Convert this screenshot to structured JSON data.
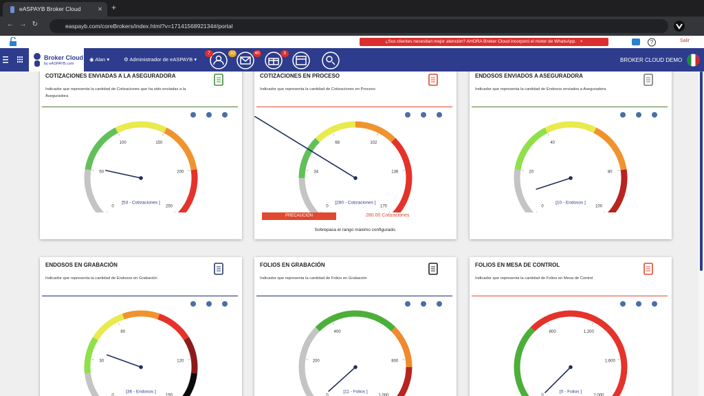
{
  "browser": {
    "tab_title": "eASPAYB Broker Cloud",
    "url": "easpayb.com/coreBrokers/index.html?v=1714156892134#/portal"
  },
  "notice": {
    "text": "¿Sus clientes necesitan mejor atención? AHORA Broker Cloud incorporó el motor de WhatsApp.",
    "close": "×"
  },
  "logout": "Salir",
  "nav": {
    "brand": "Broker Cloud",
    "brand_sub": "by eASPAYB.com",
    "user": "Alan",
    "role": "Administrador de eASPAYB",
    "badges": [
      7,
      10,
      40,
      3
    ],
    "company": "BROKER CLOUD DEMO"
  },
  "cards": [
    {
      "title": "COTIZACIONES ENVIADAS A LA ASEGURADORA",
      "description": "Indicador que representa la cantidad de Cotizaciones que ha sido enviadas a la Aseguradora",
      "accent": "#4b7a2c",
      "icon_color": "#3f8f3a",
      "range": [
        0,
        250
      ],
      "ticks": [
        0,
        50,
        100,
        150,
        200,
        250
      ],
      "value": 53,
      "value_label": "[53 - Cotizaciones ]",
      "bands": [
        "#c4c4c4",
        "#62c05a",
        "#e9ea4c",
        "#f0932f",
        "#e4332b"
      ]
    },
    {
      "title": "COTIZACIONES EN PROCESO",
      "description": "Indicador que representa la cantidad de Cotizaciones en Proceso",
      "accent": "#e0492f",
      "icon_color": "#e0492f",
      "range": [
        0,
        170
      ],
      "ticks": [
        0,
        34,
        68,
        102,
        136,
        170
      ],
      "value": 280,
      "value_label": "[280 - Cotizaciones ]",
      "bands": [
        "#c4c4c4",
        "#62c05a",
        "#e9ea4c",
        "#f0932f",
        "#e4332b",
        "#e4332b"
      ],
      "alert": {
        "button": "PRECAUCIÓN",
        "amount": "280.00 Cotizaciones",
        "message": "Sobrepasa el rango máximo configurado."
      }
    },
    {
      "title": "ENDOSOS ENVIADOS A ASEGURADORA",
      "description": "Indicador que representa la cantidad de Endosos enviados a Aseguradora",
      "accent": "#4b7a2c",
      "icon_color": "#777777",
      "range": [
        0,
        100
      ],
      "ticks": [
        0,
        20,
        40,
        80,
        100
      ],
      "value": 10,
      "value_label": "[10 - Endosos ]",
      "bands": [
        "#c4c4c4",
        "#8fe04a",
        "#e9ea4c",
        "#f0932f",
        "#b8241f"
      ]
    },
    {
      "title": "ENDOSOS EN GRABACIÓN",
      "description": "Indicador que representa la cantidad de Endosos en Grabación",
      "accent": "#1f2d6b",
      "icon_color": "#2b3a6b",
      "range": [
        0,
        150
      ],
      "ticks": [
        0,
        30,
        60,
        120,
        150
      ],
      "value": 36,
      "value_label": "[36 - Endosos ]",
      "bands": [
        "#c4c4c4",
        "#8fe04a",
        "#e9ea4c",
        "#f0932f",
        "#e4332b",
        "#8e1b1b",
        "#0a0a0a"
      ]
    },
    {
      "title": "FOLIOS EN GRABACIÓN",
      "description": "Indicador que representa la cantidad de Folios en Grabación",
      "accent": "#1f2d6b",
      "icon_color": "#222222",
      "range": [
        0,
        1000
      ],
      "ticks": [
        0,
        200,
        400,
        {
          "value": 1000,
          "label": "1,000"
        },
        800
      ],
      "value": 11,
      "value_label": "[11 - Folios ]",
      "bands": [
        "#c4c4c4",
        "#c4c4c4",
        "#4caf3a",
        "#4caf3a",
        "#ef8a2e",
        "#b8241f"
      ]
    },
    {
      "title": "FOLIOS EN MESA DE CONTROL",
      "description": "Indicador que representa la cantidad de Folios en Mesa de Control",
      "accent": "#e0492f",
      "icon_color": "#e0492f",
      "range": [
        0,
        2000
      ],
      "ticks": [
        0,
        800,
        {
          "value": 1200,
          "label": "1,200"
        },
        {
          "value": 1600,
          "label": "1,600"
        },
        {
          "value": 2000,
          "label": "2,000"
        }
      ],
      "value": 0,
      "value_label": "[0 - Folios ]",
      "bands": [
        "#4caf3a",
        "#4caf3a",
        "#e4332b",
        "#e4332b",
        "#e4332b",
        "#e4332b"
      ]
    }
  ]
}
